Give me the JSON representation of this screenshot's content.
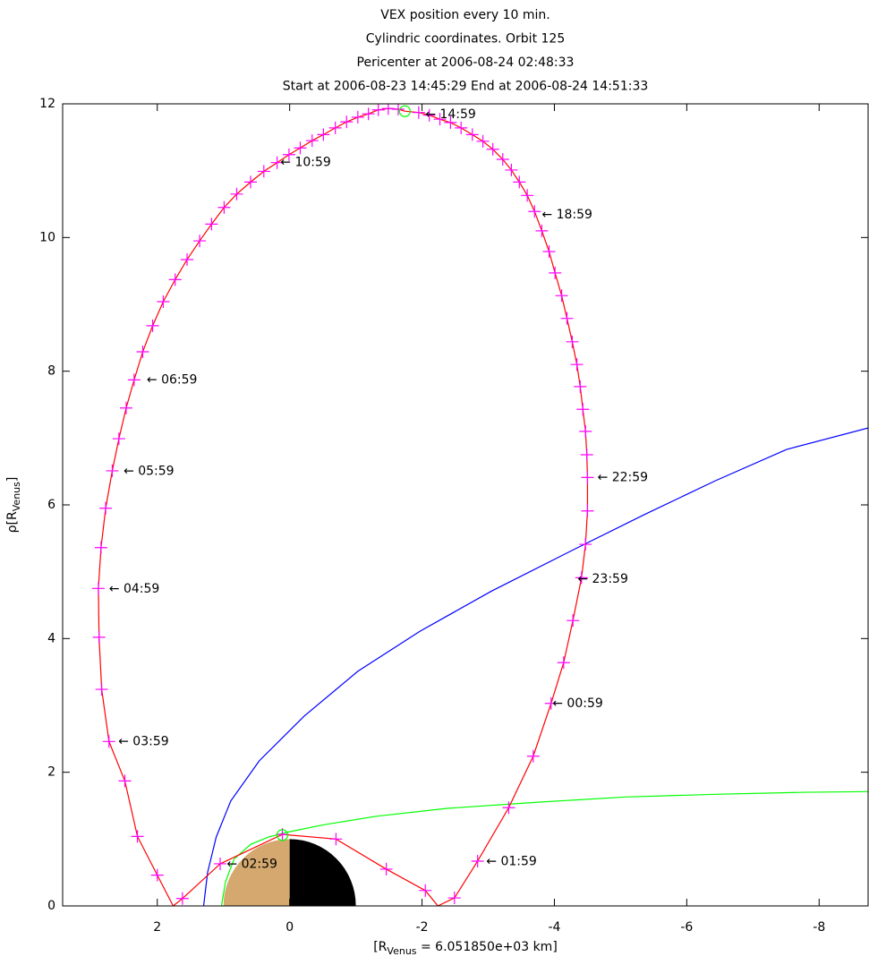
{
  "chart_data": {
    "type": "line",
    "title": [
      "VEX position every 10 min.",
      "Cylindric coordinates. Orbit 125",
      "Pericenter at 2006-08-24 02:48:33",
      "Start at 2006-08-23 14:45:29 End at 2006-08-24 14:51:33"
    ],
    "xlabel": [
      "[R",
      "Venus",
      " = 6.051850e+03 km]"
    ],
    "ylabel": [
      "ρ[R",
      "Venus",
      "]"
    ],
    "xlim": [
      3.43,
      -8.74
    ],
    "ylim": [
      0,
      12
    ],
    "xticks": [
      2,
      0,
      -2,
      -4,
      -6,
      -8
    ],
    "yticks": [
      0,
      2,
      4,
      6,
      8,
      10,
      12
    ],
    "grid": false,
    "venus": {
      "radius": 1,
      "day_color": "#d4a86e",
      "night_color": "#000000"
    },
    "series": [
      {
        "style": "line",
        "color": "#0000ff",
        "x": [
          1.3,
          1.24,
          1.11,
          0.89,
          0.46,
          -0.22,
          -1.03,
          -1.97,
          -3.05,
          -4.27,
          -5.35,
          -6.43,
          -7.51,
          -8.74
        ],
        "values": [
          0,
          0.5,
          1.03,
          1.57,
          2.17,
          2.84,
          3.51,
          4.11,
          4.71,
          5.32,
          5.85,
          6.36,
          6.83,
          7.15
        ]
      },
      {
        "style": "line",
        "color": "#00ff00",
        "x": [
          1.03,
          0.97,
          0.84,
          0.59,
          0.32,
          0.05,
          -0.49,
          -1.3,
          -2.38,
          -3.73,
          -5.08,
          -6.43,
          -7.78,
          -8.74
        ],
        "values": [
          0,
          0.36,
          0.7,
          0.92,
          1.03,
          1.1,
          1.21,
          1.34,
          1.46,
          1.55,
          1.63,
          1.67,
          1.7,
          1.71
        ]
      },
      {
        "style": "line",
        "color": "#ff0000",
        "x": [
          -1.74,
          -1.95,
          -2.11,
          -2.27,
          -2.43,
          -2.59,
          -2.76,
          -2.92,
          -3.07,
          -3.22,
          -3.35,
          -3.47,
          -3.59,
          -3.7,
          -3.81,
          -3.92,
          -4.01,
          -4.11,
          -4.19,
          -4.27,
          -4.34,
          -4.39,
          -4.43,
          -4.47,
          -4.49,
          -4.5,
          -4.5,
          -4.47,
          -4.41,
          -4.28,
          -4.14,
          -3.95,
          -3.68,
          -3.31,
          -2.84,
          -2.49,
          -2.24,
          -2.05,
          -1.46,
          -0.7,
          0.11,
          1.05,
          1.62,
          1.76,
          2.0,
          2.3,
          2.49,
          2.73,
          2.84,
          2.88,
          2.89,
          2.85,
          2.78,
          2.68,
          2.58,
          2.47,
          2.35,
          2.22,
          2.07,
          1.91,
          1.73,
          1.55,
          1.36,
          1.18,
          0.99,
          0.8,
          0.59,
          0.39,
          0.19,
          0.01,
          -0.16,
          -0.34,
          -0.51,
          -0.69,
          -0.86,
          -1.03,
          -1.19,
          -1.34,
          -1.49,
          -1.64,
          -1.74
        ],
        "values": [
          11.89,
          11.87,
          11.83,
          11.77,
          11.72,
          11.64,
          11.54,
          11.44,
          11.32,
          11.17,
          11.01,
          10.83,
          10.63,
          10.39,
          10.1,
          9.79,
          9.47,
          9.13,
          8.79,
          8.44,
          8.1,
          7.77,
          7.43,
          7.1,
          6.75,
          6.41,
          5.91,
          5.41,
          4.91,
          4.27,
          3.64,
          3.03,
          2.24,
          1.47,
          0.67,
          0.12,
          0,
          0.23,
          0.55,
          1.0,
          1.07,
          0.63,
          0.11,
          0,
          0.46,
          1.04,
          1.87,
          2.46,
          3.24,
          4.02,
          4.75,
          5.36,
          5.95,
          6.51,
          6.99,
          7.45,
          7.87,
          8.29,
          8.68,
          9.04,
          9.37,
          9.67,
          9.95,
          10.2,
          10.45,
          10.65,
          10.83,
          10.99,
          11.12,
          11.24,
          11.34,
          11.45,
          11.54,
          11.64,
          11.73,
          11.8,
          11.85,
          11.91,
          11.93,
          11.92,
          11.89
        ]
      },
      {
        "style": "+",
        "color": "#ff00ff",
        "x": [
          -1.95,
          -2.11,
          -2.27,
          -2.43,
          -2.59,
          -2.76,
          -2.92,
          -3.07,
          -3.22,
          -3.35,
          -3.47,
          -3.59,
          -3.7,
          -3.81,
          -3.92,
          -4.01,
          -4.11,
          -4.19,
          -4.27,
          -4.34,
          -4.39,
          -4.43,
          -4.47,
          -4.49,
          -4.5,
          -4.5,
          -4.47,
          -4.41,
          -4.28,
          -4.14,
          -3.95,
          -3.68,
          -3.31,
          -2.84,
          -2.49,
          -2.05,
          -1.46,
          -0.7,
          0.11,
          1.05,
          1.62,
          2.0,
          2.3,
          2.49,
          2.73,
          2.84,
          2.88,
          2.89,
          2.85,
          2.78,
          2.68,
          2.58,
          2.47,
          2.35,
          2.22,
          2.07,
          1.91,
          1.73,
          1.55,
          1.36,
          1.18,
          0.99,
          0.8,
          0.59,
          0.39,
          0.19,
          0.01,
          -0.16,
          -0.34,
          -0.51,
          -0.69,
          -0.86,
          -1.03,
          -1.19,
          -1.34,
          -1.49,
          -1.64
        ],
        "values": [
          11.87,
          11.83,
          11.77,
          11.72,
          11.64,
          11.54,
          11.44,
          11.32,
          11.17,
          11.01,
          10.83,
          10.63,
          10.39,
          10.1,
          9.79,
          9.47,
          9.13,
          8.79,
          8.44,
          8.1,
          7.77,
          7.43,
          7.1,
          6.75,
          6.41,
          5.91,
          5.41,
          4.91,
          4.27,
          3.64,
          3.03,
          2.24,
          1.47,
          0.67,
          0.12,
          0.23,
          0.55,
          1.0,
          1.07,
          0.63,
          0.11,
          0.46,
          1.04,
          1.87,
          2.46,
          3.24,
          4.02,
          4.75,
          5.36,
          5.95,
          6.51,
          6.99,
          7.45,
          7.87,
          8.29,
          8.68,
          9.04,
          9.37,
          9.67,
          9.95,
          10.2,
          10.45,
          10.65,
          10.83,
          10.99,
          11.12,
          11.24,
          11.34,
          11.45,
          11.54,
          11.64,
          11.73,
          11.8,
          11.85,
          11.91,
          11.93,
          11.92
        ]
      },
      {
        "style": "o",
        "color": "#00ff00",
        "x": [
          -1.74,
          0.11
        ],
        "values": [
          11.89,
          1.06
        ]
      }
    ],
    "annotations": [
      {
        "text": "← 14:59",
        "x": -2.05,
        "y": 11.84
      },
      {
        "text": "← 10:59",
        "x": 0.14,
        "y": 11.12
      },
      {
        "text": "← 18:59",
        "x": -3.81,
        "y": 10.34
      },
      {
        "text": "← 06:59",
        "x": 2.16,
        "y": 7.87
      },
      {
        "text": "← 05:59",
        "x": 2.51,
        "y": 6.5
      },
      {
        "text": "← 22:59",
        "x": -4.65,
        "y": 6.41
      },
      {
        "text": "← 23:59",
        "x": -4.35,
        "y": 4.89
      },
      {
        "text": "← 04:59",
        "x": 2.73,
        "y": 4.74
      },
      {
        "text": "← 00:59",
        "x": -3.97,
        "y": 3.03
      },
      {
        "text": "← 03:59",
        "x": 2.59,
        "y": 2.46
      },
      {
        "text": "← 01:59",
        "x": -2.97,
        "y": 0.66
      },
      {
        "text": "← 02:59",
        "x": 0.95,
        "y": 0.62
      }
    ]
  }
}
